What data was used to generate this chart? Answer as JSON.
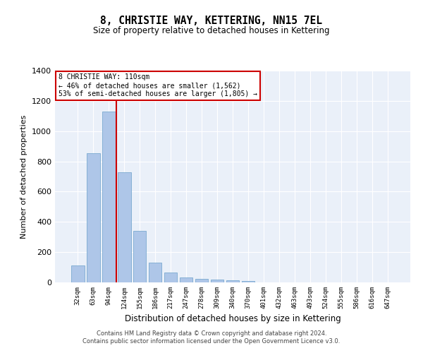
{
  "title": "8, CHRISTIE WAY, KETTERING, NN15 7EL",
  "subtitle": "Size of property relative to detached houses in Kettering",
  "xlabel": "Distribution of detached houses by size in Kettering",
  "ylabel": "Number of detached properties",
  "categories": [
    "32sqm",
    "63sqm",
    "94sqm",
    "124sqm",
    "155sqm",
    "186sqm",
    "217sqm",
    "247sqm",
    "278sqm",
    "309sqm",
    "340sqm",
    "370sqm",
    "401sqm",
    "432sqm",
    "463sqm",
    "493sqm",
    "524sqm",
    "555sqm",
    "586sqm",
    "616sqm",
    "647sqm"
  ],
  "values": [
    110,
    855,
    1130,
    730,
    340,
    130,
    65,
    35,
    25,
    20,
    15,
    8,
    0,
    0,
    0,
    0,
    0,
    0,
    0,
    0,
    0
  ],
  "bar_color": "#aec6e8",
  "bar_edge_color": "#7aaad0",
  "vline_color": "#cc0000",
  "annotation_text": "8 CHRISTIE WAY: 110sqm\n← 46% of detached houses are smaller (1,562)\n53% of semi-detached houses are larger (1,805) →",
  "annotation_box_color": "#ffffff",
  "annotation_box_edge_color": "#cc0000",
  "ylim": [
    0,
    1400
  ],
  "yticks": [
    0,
    200,
    400,
    600,
    800,
    1000,
    1200,
    1400
  ],
  "bg_color": "#eaf0f9",
  "grid_color": "#ffffff",
  "footer_line1": "Contains HM Land Registry data © Crown copyright and database right 2024.",
  "footer_line2": "Contains public sector information licensed under the Open Government Licence v3.0."
}
